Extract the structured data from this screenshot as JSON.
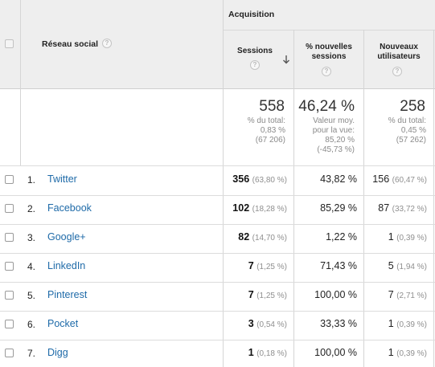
{
  "header": {
    "group_label": "Acquisition",
    "dimension_label": "Réseau social",
    "help_glyph": "?",
    "columns": [
      {
        "key": "sessions",
        "label_lines": [
          "Sessions"
        ],
        "sorted": true
      },
      {
        "key": "new_pct",
        "label_lines": [
          "% nouvelles",
          "sessions"
        ]
      },
      {
        "key": "new_users",
        "label_lines": [
          "Nouveaux",
          "utilisateurs"
        ]
      }
    ]
  },
  "totals": {
    "sessions": {
      "main": "558",
      "lines": [
        "% du total:",
        "0,83 %",
        "(67 206)"
      ]
    },
    "new_pct": {
      "main": "46,24 %",
      "lines": [
        "Valeur moy.",
        "pour la vue:",
        "85,20 %",
        "(-45,73 %)"
      ]
    },
    "new_users": {
      "main": "258",
      "lines": [
        "% du total:",
        "0,45 %",
        "(57 262)"
      ]
    }
  },
  "rows": [
    {
      "rank": "1.",
      "network": "Twitter",
      "sessions": "356",
      "sessions_pct": "(63,80 %)",
      "new_pct": "43,82 %",
      "new_users": "156",
      "new_users_pct": "(60,47 %)"
    },
    {
      "rank": "2.",
      "network": "Facebook",
      "sessions": "102",
      "sessions_pct": "(18,28 %)",
      "new_pct": "85,29 %",
      "new_users": "87",
      "new_users_pct": "(33,72 %)"
    },
    {
      "rank": "3.",
      "network": "Google+",
      "sessions": "82",
      "sessions_pct": "(14,70 %)",
      "new_pct": "1,22 %",
      "new_users": "1",
      "new_users_pct": "(0,39 %)"
    },
    {
      "rank": "4.",
      "network": "LinkedIn",
      "sessions": "7",
      "sessions_pct": "(1,25 %)",
      "new_pct": "71,43 %",
      "new_users": "5",
      "new_users_pct": "(1,94 %)"
    },
    {
      "rank": "5.",
      "network": "Pinterest",
      "sessions": "7",
      "sessions_pct": "(1,25 %)",
      "new_pct": "100,00 %",
      "new_users": "7",
      "new_users_pct": "(2,71 %)"
    },
    {
      "rank": "6.",
      "network": "Pocket",
      "sessions": "3",
      "sessions_pct": "(0,54 %)",
      "new_pct": "33,33 %",
      "new_users": "1",
      "new_users_pct": "(0,39 %)"
    },
    {
      "rank": "7.",
      "network": "Digg",
      "sessions": "1",
      "sessions_pct": "(0,18 %)",
      "new_pct": "100,00 %",
      "new_users": "1",
      "new_users_pct": "(0,39 %)"
    }
  ]
}
